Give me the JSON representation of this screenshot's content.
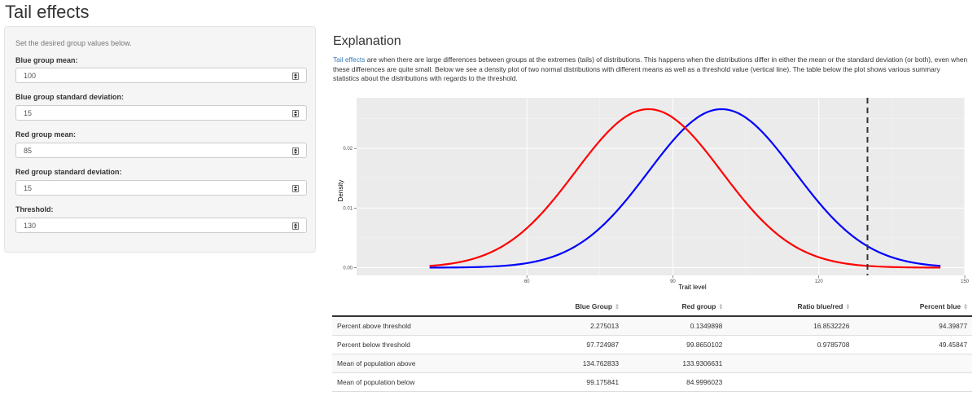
{
  "app": {
    "title": "Tail effects"
  },
  "sidebar": {
    "intro": "Set the desired group values below.",
    "fields": [
      {
        "label": "Blue group mean:",
        "value": "100"
      },
      {
        "label": "Blue group standard deviation:",
        "value": "15"
      },
      {
        "label": "Red group mean:",
        "value": "85"
      },
      {
        "label": "Red group standard deviation:",
        "value": "15"
      },
      {
        "label": "Threshold:",
        "value": "130"
      }
    ]
  },
  "main": {
    "heading": "Explanation",
    "link_text": "Tail effects",
    "explanation": " are when there are large differences between groups at the extremes (tails) of distributions. This happens when the distributions differ in either the mean or the standard deviation (or both), even when these differences are quite small. Below we see a density plot of two normal distributions with different means as well as a threshold value (vertical line). The table below the plot shows various summary statistics about the distributions with regards to the threshold."
  },
  "colors": {
    "blue": "#0000ff",
    "red": "#ff0000",
    "panel": "#ebebeb",
    "link": "#337ab7"
  },
  "chart_data": {
    "type": "line",
    "xlabel": "Trait level",
    "ylabel": "Density",
    "xlim": [
      25,
      150
    ],
    "ylim": [
      -0.0013,
      0.0285
    ],
    "xticks": [
      60,
      90,
      120,
      150
    ],
    "yticks": [
      0.0,
      0.01,
      0.02
    ],
    "ytick_labels": [
      "0.00",
      "0.01",
      "0.02"
    ],
    "x_range": [
      40,
      145
    ],
    "series": [
      {
        "color": "#0000ff",
        "mean": 100,
        "sd": 15
      },
      {
        "color": "#ff0000",
        "mean": 85,
        "sd": 15
      }
    ],
    "threshold": 130,
    "grid": true
  },
  "table": {
    "columns": [
      "",
      "Blue Group",
      "Red group",
      "Ratio blue/red",
      "Percent blue"
    ],
    "rows": [
      [
        "Percent above threshold",
        "2.275013",
        "0.1349898",
        "16.8532226",
        "94.39877"
      ],
      [
        "Percent below threshold",
        "97.724987",
        "99.8650102",
        "0.9785708",
        "49.45847"
      ],
      [
        "Mean of population above",
        "134.762833",
        "133.9306631",
        "",
        ""
      ],
      [
        "Mean of population below",
        "99.175841",
        "84.9996023",
        "",
        ""
      ]
    ]
  }
}
